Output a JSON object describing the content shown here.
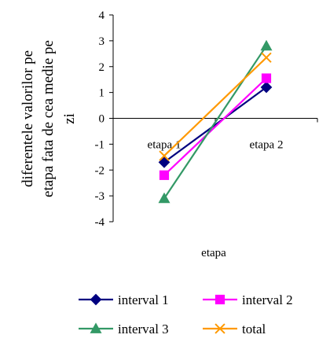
{
  "chart_data": {
    "type": "line",
    "title": "",
    "xlabel": "etapa",
    "ylabel_lines": [
      "diferentele valorilor pe",
      "etapa fata de cea medie pe",
      "zi"
    ],
    "categories": [
      "etapa 1",
      "etapa 2"
    ],
    "ylim": [
      -4,
      4
    ],
    "yticks": [
      -4,
      -3,
      -2,
      -1,
      0,
      1,
      2,
      3,
      4
    ],
    "grid": false,
    "legend_position": "bottom",
    "series": [
      {
        "name": "interval 1",
        "values": [
          -1.7,
          1.2
        ],
        "color": "#000080",
        "marker": "diamond"
      },
      {
        "name": "interval 2",
        "values": [
          -2.2,
          1.55
        ],
        "color": "#ff00ff",
        "marker": "square"
      },
      {
        "name": "interval 3",
        "values": [
          -3.1,
          2.8
        ],
        "color": "#339966",
        "marker": "triangle"
      },
      {
        "name": "total",
        "values": [
          -1.45,
          2.35
        ],
        "color": "#ff9900",
        "marker": "x"
      }
    ]
  }
}
